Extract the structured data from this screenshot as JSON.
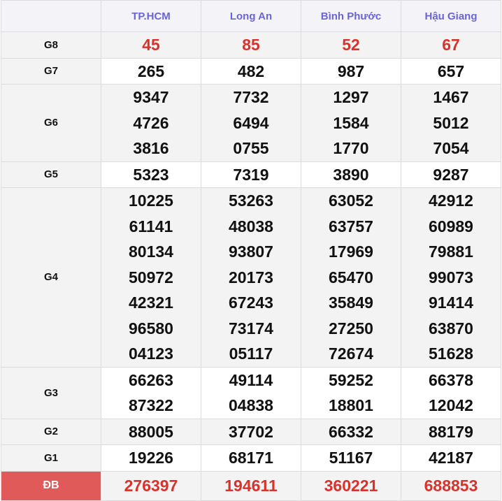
{
  "columns": [
    "TP.HCM",
    "Long An",
    "Bình Phước",
    "Hậu Giang"
  ],
  "colors": {
    "header_text": "#6b64d6",
    "highlight": "#d8322c",
    "db_label_bg": "#e05a5a"
  },
  "rows": [
    {
      "label": "G8",
      "values": [
        [
          "45"
        ],
        [
          "85"
        ],
        [
          "52"
        ],
        [
          "67"
        ]
      ]
    },
    {
      "label": "G7",
      "values": [
        [
          "265"
        ],
        [
          "482"
        ],
        [
          "987"
        ],
        [
          "657"
        ]
      ]
    },
    {
      "label": "G6",
      "values": [
        [
          "9347",
          "4726",
          "3816"
        ],
        [
          "7732",
          "6494",
          "0755"
        ],
        [
          "1297",
          "1584",
          "1770"
        ],
        [
          "1467",
          "5012",
          "7054"
        ]
      ]
    },
    {
      "label": "G5",
      "values": [
        [
          "5323"
        ],
        [
          "7319"
        ],
        [
          "3890"
        ],
        [
          "9287"
        ]
      ]
    },
    {
      "label": "G4",
      "values": [
        [
          "10225",
          "61141",
          "80134",
          "50972",
          "42321",
          "96580",
          "04123"
        ],
        [
          "53263",
          "48038",
          "93807",
          "20173",
          "67243",
          "73174",
          "05117"
        ],
        [
          "63052",
          "63757",
          "17969",
          "65470",
          "35849",
          "27250",
          "72674"
        ],
        [
          "42912",
          "60989",
          "79881",
          "99073",
          "91414",
          "63870",
          "51628"
        ]
      ]
    },
    {
      "label": "G3",
      "values": [
        [
          "66263",
          "87322"
        ],
        [
          "49114",
          "04838"
        ],
        [
          "59252",
          "18801"
        ],
        [
          "66378",
          "12042"
        ]
      ]
    },
    {
      "label": "G2",
      "values": [
        [
          "88005"
        ],
        [
          "37702"
        ],
        [
          "66332"
        ],
        [
          "88179"
        ]
      ]
    },
    {
      "label": "G1",
      "values": [
        [
          "19226"
        ],
        [
          "68171"
        ],
        [
          "51167"
        ],
        [
          "42187"
        ]
      ]
    },
    {
      "label": "ĐB",
      "values": [
        [
          "276397"
        ],
        [
          "194611"
        ],
        [
          "360221"
        ],
        [
          "688853"
        ]
      ]
    }
  ]
}
